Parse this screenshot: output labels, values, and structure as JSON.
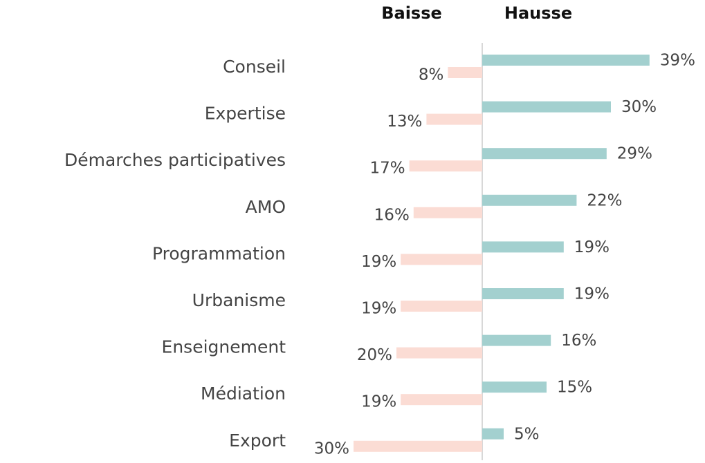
{
  "chart_data": {
    "type": "diverging-bar",
    "categories": [
      "Conseil",
      "Expertise",
      "Démarches participatives",
      "AMO",
      "Programmation",
      "Urbanisme",
      "Enseignement",
      "Médiation",
      "Export"
    ],
    "series": [
      {
        "name": "Baisse",
        "color": "#fbdcd4",
        "values": [
          8,
          13,
          17,
          16,
          19,
          19,
          20,
          19,
          30
        ],
        "value_labels": [
          "8%",
          "13%",
          "17%",
          "16%",
          "19%",
          "19%",
          "20%",
          "19%",
          "30%"
        ]
      },
      {
        "name": "Hausse",
        "color": "#a3d0cf",
        "values": [
          39,
          30,
          29,
          22,
          19,
          19,
          16,
          15,
          5
        ],
        "value_labels": [
          "39%",
          "30%",
          "29%",
          "22%",
          "19%",
          "19%",
          "16%",
          "15%",
          "5%"
        ]
      }
    ]
  }
}
